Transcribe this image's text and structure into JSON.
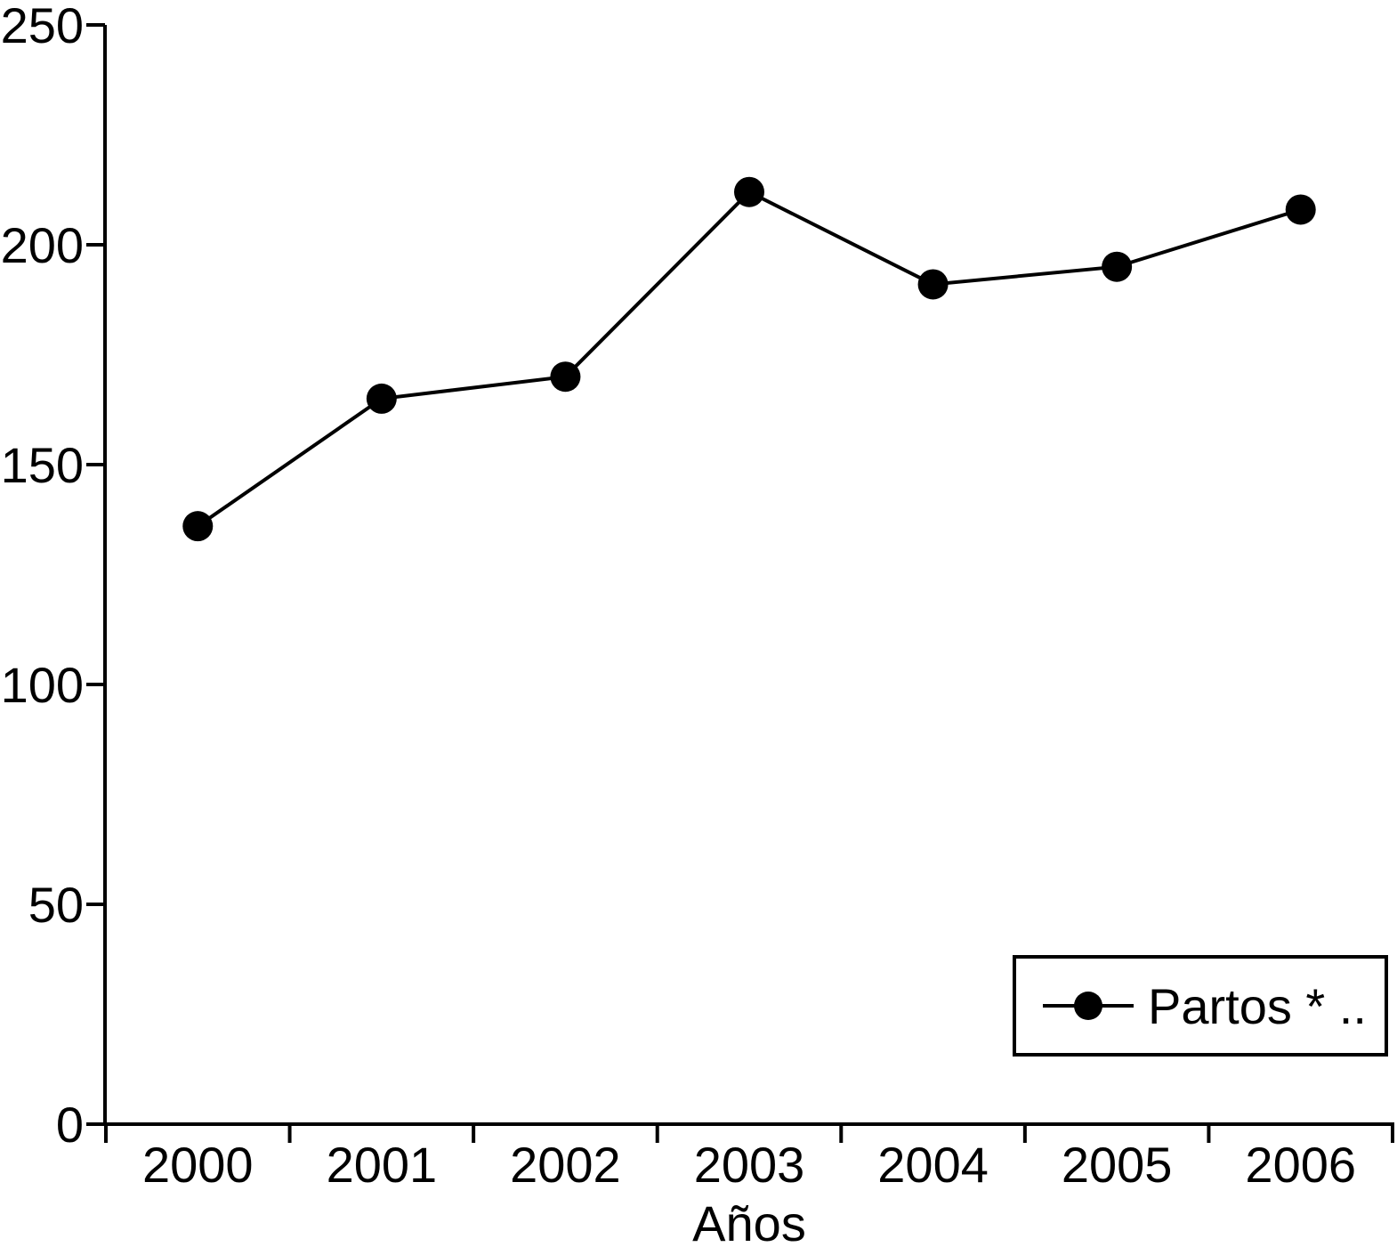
{
  "chart_data": {
    "type": "line",
    "title": "",
    "xlabel": "Años",
    "ylabel": "",
    "categories": [
      "2000",
      "2001",
      "2002",
      "2003",
      "2004",
      "2005",
      "2006"
    ],
    "series": [
      {
        "name": "Partos * ..",
        "marker": "filled-circle",
        "values": [
          136,
          165,
          170,
          212,
          191,
          195,
          208
        ]
      }
    ],
    "ylim": [
      0,
      250
    ],
    "yticks": [
      0,
      50,
      100,
      150,
      200,
      250
    ],
    "grid": false,
    "legend_position": "bottom-right-inside",
    "colors": {
      "line": "#000000",
      "marker": "#000000",
      "axis": "#000000",
      "text": "#000000",
      "background": "#ffffff",
      "legend_border": "#000000",
      "legend_fill": "#ffffff"
    }
  }
}
